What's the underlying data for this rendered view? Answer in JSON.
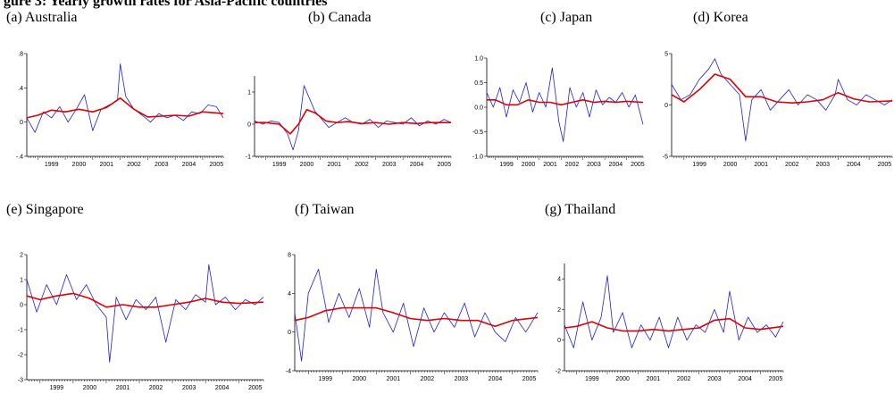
{
  "header": {
    "text": "gure 3: Yearly growth rates for Asia-Pacific countries"
  },
  "colors": {
    "series": "#1f1fd6",
    "trend": "#e00000",
    "axis": "#000000"
  },
  "chart_data": [
    {
      "type": "line",
      "panel_label": "(a) Australia",
      "xlabel": "",
      "ylabel": "",
      "y_ticks": [
        ".8",
        ".4",
        "0",
        "-.4"
      ],
      "ylim": [
        -0.4,
        0.8
      ],
      "x_ticks": [
        "1999",
        "2000",
        "2001",
        "2002",
        "2003",
        "2004",
        "2005"
      ],
      "xlim": [
        1998.6,
        2005.75
      ],
      "series": [
        {
          "name": "",
          "role": "growth",
          "x": [
            1998.6,
            1998.9,
            1999.2,
            1999.5,
            1999.8,
            2000.1,
            2000.4,
            2000.7,
            2001.0,
            2001.3,
            2001.6,
            2001.9,
            2002.0,
            2002.2,
            2002.5,
            2002.8,
            2003.1,
            2003.4,
            2003.7,
            2004.0,
            2004.3,
            2004.6,
            2004.9,
            2005.2,
            2005.5,
            2005.75
          ],
          "y": [
            0.05,
            -0.12,
            0.12,
            0.05,
            0.18,
            0.0,
            0.15,
            0.32,
            -0.1,
            0.15,
            0.2,
            0.25,
            0.68,
            0.3,
            0.15,
            0.08,
            0.0,
            0.1,
            0.05,
            0.08,
            0.02,
            0.12,
            0.1,
            0.2,
            0.18,
            0.05
          ]
        },
        {
          "name": "",
          "role": "trend",
          "x": [
            1998.6,
            1999.0,
            1999.5,
            2000.0,
            2000.5,
            2001.0,
            2001.5,
            2002.0,
            2002.5,
            2003.0,
            2003.5,
            2004.0,
            2004.5,
            2005.0,
            2005.75
          ],
          "y": [
            0.05,
            0.08,
            0.14,
            0.12,
            0.15,
            0.12,
            0.17,
            0.28,
            0.15,
            0.06,
            0.07,
            0.08,
            0.07,
            0.12,
            0.1
          ]
        }
      ]
    },
    {
      "type": "line",
      "panel_label": "(b) Canada",
      "xlabel": "",
      "ylabel": "",
      "y_ticks": [
        "1",
        "0",
        "-1"
      ],
      "ylim": [
        -1,
        1.5
      ],
      "x_ticks": [
        "1999",
        "2000",
        "2001",
        "2002",
        "2003",
        "2004",
        "2005"
      ],
      "xlim": [
        1998.6,
        2005.75
      ],
      "series": [
        {
          "name": "",
          "role": "growth",
          "x": [
            1998.6,
            1998.9,
            1999.2,
            1999.5,
            1999.8,
            2000.0,
            2000.2,
            2000.4,
            2000.6,
            2000.8,
            2001.0,
            2001.3,
            2001.6,
            2001.9,
            2002.2,
            2002.5,
            2002.8,
            2003.1,
            2003.4,
            2003.7,
            2004.0,
            2004.3,
            2004.6,
            2004.9,
            2005.2,
            2005.5,
            2005.75
          ],
          "y": [
            0.1,
            0.0,
            0.1,
            0.05,
            -0.3,
            -0.8,
            -0.2,
            1.2,
            0.8,
            0.4,
            0.2,
            -0.1,
            0.05,
            0.2,
            0.05,
            0.0,
            0.15,
            -0.1,
            0.1,
            0.05,
            0.0,
            0.2,
            -0.05,
            0.1,
            0.0,
            0.15,
            0.05
          ]
        },
        {
          "name": "",
          "role": "trend",
          "x": [
            1998.6,
            1999.0,
            1999.5,
            1999.9,
            2000.2,
            2000.5,
            2000.8,
            2001.2,
            2001.6,
            2002.0,
            2002.5,
            2003.0,
            2003.5,
            2004.0,
            2004.5,
            2005.0,
            2005.75
          ],
          "y": [
            0.05,
            0.05,
            0.0,
            -0.3,
            0.0,
            0.45,
            0.35,
            0.1,
            0.05,
            0.08,
            0.02,
            0.05,
            0.0,
            0.05,
            0.02,
            0.05,
            0.05
          ]
        }
      ]
    },
    {
      "type": "line",
      "panel_label": "(c) Japan",
      "xlabel": "",
      "ylabel": "",
      "y_ticks": [
        "1.0",
        "0.5",
        "0.0",
        "-0.5",
        "-1.0"
      ],
      "ylim": [
        -1.0,
        1.0
      ],
      "x_ticks": [
        "1999",
        "2000",
        "2001",
        "2002",
        "2003",
        "2004",
        "2005"
      ],
      "xlim": [
        1998.6,
        2005.75
      ],
      "series": [
        {
          "name": "",
          "role": "growth",
          "x": [
            1998.6,
            1998.9,
            1999.2,
            1999.5,
            1999.8,
            2000.1,
            2000.4,
            2000.7,
            2001.0,
            2001.3,
            2001.6,
            2001.9,
            2002.1,
            2002.4,
            2002.7,
            2003.0,
            2003.3,
            2003.6,
            2003.9,
            2004.2,
            2004.5,
            2004.8,
            2005.1,
            2005.4,
            2005.75
          ],
          "y": [
            0.3,
            0.0,
            0.4,
            -0.2,
            0.35,
            0.1,
            0.5,
            -0.1,
            0.3,
            0.0,
            0.8,
            -0.3,
            -0.7,
            0.4,
            0.0,
            0.3,
            -0.2,
            0.35,
            0.05,
            0.2,
            0.1,
            0.3,
            0.0,
            0.25,
            -0.35
          ]
        },
        {
          "name": "",
          "role": "trend",
          "x": [
            1998.6,
            1999.0,
            1999.5,
            2000.0,
            2000.5,
            2001.0,
            2001.5,
            2002.0,
            2002.5,
            2003.0,
            2003.5,
            2004.0,
            2004.5,
            2005.0,
            2005.75
          ],
          "y": [
            0.15,
            0.15,
            0.05,
            0.05,
            0.15,
            0.1,
            0.1,
            0.05,
            0.1,
            0.15,
            0.1,
            0.12,
            0.1,
            0.12,
            0.1
          ]
        }
      ]
    },
    {
      "type": "line",
      "panel_label": "(d) Korea",
      "xlabel": "",
      "ylabel": "",
      "y_ticks": [
        "5",
        "0",
        "-5"
      ],
      "ylim": [
        -5,
        5
      ],
      "x_ticks": [
        "1999",
        "2000",
        "2001",
        "2002",
        "2003",
        "2004",
        "2005"
      ],
      "xlim": [
        1998.6,
        2005.75
      ],
      "series": [
        {
          "name": "",
          "role": "growth",
          "x": [
            1998.6,
            1998.9,
            1999.2,
            1999.5,
            1999.8,
            2000.0,
            2000.2,
            2000.5,
            2000.8,
            2001.0,
            2001.2,
            2001.5,
            2001.8,
            2002.1,
            2002.4,
            2002.7,
            2003.0,
            2003.3,
            2003.6,
            2003.9,
            2004.0,
            2004.3,
            2004.6,
            2004.9,
            2005.2,
            2005.5,
            2005.75
          ],
          "y": [
            2.0,
            0.5,
            1.0,
            2.5,
            3.5,
            4.5,
            3.0,
            2.0,
            1.0,
            -3.5,
            0.5,
            1.5,
            -0.5,
            0.5,
            1.5,
            0.0,
            1.0,
            0.5,
            -0.5,
            1.0,
            2.5,
            0.5,
            0.0,
            1.0,
            0.5,
            0.0,
            0.5
          ]
        },
        {
          "name": "",
          "role": "trend",
          "x": [
            1998.6,
            1999.0,
            1999.5,
            2000.0,
            2000.5,
            2001.0,
            2001.5,
            2002.0,
            2002.5,
            2003.0,
            2003.5,
            2004.0,
            2004.5,
            2005.0,
            2005.75
          ],
          "y": [
            1.0,
            0.3,
            1.5,
            3.0,
            2.5,
            0.8,
            0.8,
            0.3,
            0.2,
            0.3,
            0.5,
            1.2,
            0.6,
            0.3,
            0.4
          ]
        }
      ]
    },
    {
      "type": "line",
      "panel_label": "(e) Singapore",
      "xlabel": "",
      "ylabel": "",
      "y_ticks": [
        "2",
        "1",
        "0",
        "-1",
        "-2",
        "-3"
      ],
      "ylim": [
        -3,
        2
      ],
      "x_ticks": [
        "1999",
        "2000",
        "2001",
        "2002",
        "2003",
        "2004",
        "2005"
      ],
      "xlim": [
        1998.6,
        2005.75
      ],
      "series": [
        {
          "name": "",
          "role": "growth",
          "x": [
            1998.6,
            1998.9,
            1999.2,
            1999.5,
            1999.8,
            2000.1,
            2000.4,
            2000.7,
            2001.0,
            2001.1,
            2001.3,
            2001.6,
            2001.9,
            2002.2,
            2002.5,
            2002.8,
            2003.1,
            2003.4,
            2003.7,
            2004.0,
            2004.1,
            2004.3,
            2004.6,
            2004.9,
            2005.2,
            2005.5,
            2005.75
          ],
          "y": [
            1.0,
            -0.3,
            0.8,
            0.0,
            1.2,
            0.2,
            0.8,
            0.0,
            -0.5,
            -2.3,
            0.3,
            -0.6,
            0.2,
            -0.2,
            0.3,
            -1.5,
            0.2,
            -0.2,
            0.4,
            0.1,
            1.6,
            0.0,
            0.3,
            -0.2,
            0.2,
            0.0,
            0.3
          ]
        },
        {
          "name": "",
          "role": "trend",
          "x": [
            1998.6,
            1999.0,
            1999.5,
            2000.0,
            2000.5,
            2001.0,
            2001.5,
            2002.0,
            2002.5,
            2003.0,
            2003.5,
            2004.0,
            2004.5,
            2005.0,
            2005.75
          ],
          "y": [
            0.35,
            0.2,
            0.35,
            0.45,
            0.25,
            -0.1,
            0.0,
            -0.1,
            -0.1,
            0.0,
            0.1,
            0.25,
            0.1,
            0.05,
            0.1
          ]
        }
      ]
    },
    {
      "type": "line",
      "panel_label": "(f) Taiwan",
      "xlabel": "",
      "ylabel": "",
      "y_ticks": [
        "8",
        "4",
        "0",
        "-4"
      ],
      "ylim": [
        -4,
        8
      ],
      "x_ticks": [
        "1999",
        "2000",
        "2001",
        "2002",
        "2003",
        "2004",
        "2005"
      ],
      "xlim": [
        1998.6,
        2005.75
      ],
      "series": [
        {
          "name": "",
          "role": "growth",
          "x": [
            1998.6,
            1998.8,
            1999.0,
            1999.3,
            1999.6,
            1999.9,
            2000.2,
            2000.5,
            2000.8,
            2001.0,
            2001.2,
            2001.5,
            2001.8,
            2002.1,
            2002.4,
            2002.7,
            2003.0,
            2003.3,
            2003.6,
            2003.9,
            2004.2,
            2004.5,
            2004.8,
            2005.1,
            2005.4,
            2005.75
          ],
          "y": [
            2.0,
            -3.0,
            4.0,
            6.5,
            1.0,
            4.0,
            1.5,
            4.5,
            0.5,
            6.5,
            2.0,
            0.0,
            3.0,
            -1.5,
            2.5,
            0.0,
            2.0,
            0.5,
            3.0,
            -0.5,
            2.0,
            0.0,
            -1.0,
            1.5,
            0.0,
            2.0
          ]
        },
        {
          "name": "",
          "role": "trend",
          "x": [
            1998.6,
            1999.0,
            1999.5,
            2000.0,
            2000.5,
            2001.0,
            2001.5,
            2002.0,
            2002.5,
            2003.0,
            2003.5,
            2004.0,
            2004.5,
            2005.0,
            2005.75
          ],
          "y": [
            1.2,
            1.5,
            2.2,
            2.5,
            2.5,
            2.5,
            2.0,
            1.4,
            1.2,
            1.4,
            1.2,
            1.2,
            0.6,
            1.2,
            1.5
          ]
        }
      ]
    },
    {
      "type": "line",
      "panel_label": "(g) Thailand",
      "xlabel": "",
      "ylabel": "",
      "y_ticks": [
        "4",
        "2",
        "0",
        "-2"
      ],
      "ylim": [
        -2,
        5
      ],
      "x_ticks": [
        "1999",
        "2000",
        "2001",
        "2002",
        "2003",
        "2004",
        "2005"
      ],
      "xlim": [
        1998.6,
        2005.75
      ],
      "series": [
        {
          "name": "",
          "role": "growth",
          "x": [
            1998.6,
            1998.9,
            1999.2,
            1999.5,
            1999.8,
            2000.0,
            2000.2,
            2000.5,
            2000.8,
            2001.1,
            2001.4,
            2001.7,
            2002.0,
            2002.3,
            2002.6,
            2002.9,
            2003.2,
            2003.5,
            2003.8,
            2004.0,
            2004.3,
            2004.6,
            2004.9,
            2005.2,
            2005.5,
            2005.75
          ],
          "y": [
            1.0,
            -0.5,
            2.5,
            0.0,
            1.5,
            4.2,
            0.5,
            1.8,
            -0.5,
            1.0,
            0.0,
            1.5,
            -0.5,
            1.5,
            0.0,
            1.0,
            0.5,
            2.0,
            0.5,
            3.2,
            0.0,
            1.5,
            0.5,
            1.0,
            0.2,
            1.2
          ]
        },
        {
          "name": "",
          "role": "trend",
          "x": [
            1998.6,
            1999.0,
            1999.5,
            2000.0,
            2000.5,
            2001.0,
            2001.5,
            2002.0,
            2002.5,
            2003.0,
            2003.5,
            2004.0,
            2004.5,
            2005.0,
            2005.75
          ],
          "y": [
            0.8,
            0.9,
            1.2,
            0.8,
            0.6,
            0.6,
            0.7,
            0.6,
            0.7,
            0.8,
            1.3,
            1.4,
            0.8,
            0.7,
            0.9
          ]
        }
      ]
    }
  ]
}
